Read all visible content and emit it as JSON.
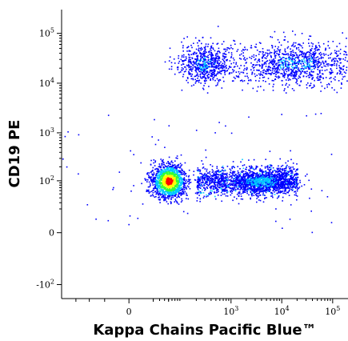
{
  "chart_data": {
    "type": "scatter",
    "title": "",
    "subtitle": "",
    "xlabel": "Kappa Chains Pacific Blue™",
    "ylabel": "CD19 PE",
    "x_scale": "biexponential (linear near 0, log above)",
    "y_scale": "biexponential (linear near 0, log above)",
    "xlim": [
      -200,
      200000
    ],
    "ylim": [
      -200,
      300000
    ],
    "x_ticks": [
      {
        "value": 0,
        "base": "0",
        "exp": ""
      },
      {
        "value": 1000,
        "base": "10",
        "exp": "3"
      },
      {
        "value": 10000,
        "base": "10",
        "exp": "4"
      },
      {
        "value": 100000,
        "base": "10",
        "exp": "5"
      }
    ],
    "y_ticks": [
      {
        "value": -100,
        "base": "-10",
        "exp": "2"
      },
      {
        "value": 0,
        "base": "0",
        "exp": ""
      },
      {
        "value": 100,
        "base": "10",
        "exp": "2"
      },
      {
        "value": 1000,
        "base": "10",
        "exp": "3"
      },
      {
        "value": 10000,
        "base": "10",
        "exp": "4"
      },
      {
        "value": 100000,
        "base": "10",
        "exp": "5"
      }
    ],
    "grid": false,
    "legend": "none",
    "color_scheme": "density (blue → cyan → green → yellow → red)",
    "density_colors": [
      "#0000ff",
      "#00c8ff",
      "#32ff32",
      "#ffff00",
      "#ff0000"
    ],
    "populations": [
      {
        "description": "double-negative cluster",
        "x_center": 50,
        "y_center": 100,
        "relative_density": "very high"
      },
      {
        "description": "CD19-negative kappa-dim/positive band",
        "x_range": [
          200,
          20000
        ],
        "y_center": 100,
        "relative_density": "medium"
      },
      {
        "description": "CD19-negative kappa-positive cluster",
        "x_center": 4000,
        "y_center": 100,
        "relative_density": "high"
      },
      {
        "description": "CD19-positive kappa-negative cluster",
        "x_center": 300,
        "y_center": 25000,
        "relative_density": "low"
      },
      {
        "description": "CD19-positive kappa-positive cluster",
        "x_center": 20000,
        "y_center": 25000,
        "relative_density": "low"
      }
    ]
  }
}
